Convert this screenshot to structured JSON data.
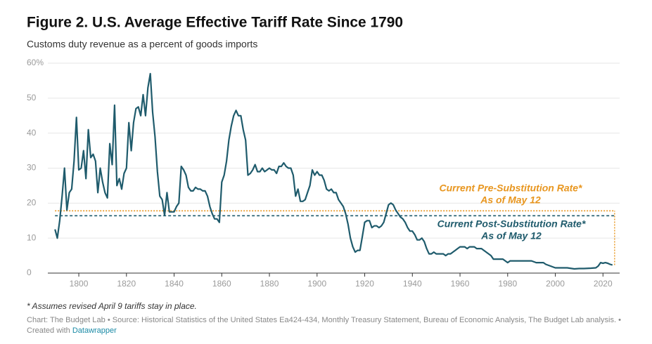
{
  "chart_data": {
    "type": "line",
    "title": "Figure 2. U.S. Average Effective Tariff Rate Since 1790",
    "subtitle": "Customs duty revenue as a percent of goods imports",
    "note": "* Assumes revised April 9 tariffs stay in place.",
    "source": "Chart: The Budget Lab • Source: Historical Statistics of the United States Ea424-434, Monthly Treasury Statement, Bureau of Economic Analysis, The Budget Lab analysis. •",
    "credit": "Created with",
    "credit_link": "Datawrapper",
    "color": "#1f5b6c",
    "x": [
      1790,
      1791,
      1792,
      1793,
      1794,
      1795,
      1796,
      1797,
      1798,
      1799,
      1800,
      1801,
      1802,
      1803,
      1804,
      1805,
      1806,
      1807,
      1808,
      1809,
      1810,
      1811,
      1812,
      1813,
      1814,
      1815,
      1816,
      1817,
      1818,
      1819,
      1820,
      1821,
      1822,
      1823,
      1824,
      1825,
      1826,
      1827,
      1828,
      1829,
      1830,
      1831,
      1832,
      1833,
      1834,
      1835,
      1836,
      1837,
      1838,
      1839,
      1840,
      1841,
      1842,
      1843,
      1844,
      1845,
      1846,
      1847,
      1848,
      1849,
      1850,
      1851,
      1852,
      1853,
      1854,
      1855,
      1856,
      1857,
      1858,
      1859,
      1860,
      1861,
      1862,
      1863,
      1864,
      1865,
      1866,
      1867,
      1868,
      1869,
      1870,
      1871,
      1872,
      1873,
      1874,
      1875,
      1876,
      1877,
      1878,
      1879,
      1880,
      1881,
      1882,
      1883,
      1884,
      1885,
      1886,
      1887,
      1888,
      1889,
      1890,
      1891,
      1892,
      1893,
      1894,
      1895,
      1896,
      1897,
      1898,
      1899,
      1900,
      1901,
      1902,
      1903,
      1904,
      1905,
      1906,
      1907,
      1908,
      1909,
      1910,
      1911,
      1912,
      1913,
      1914,
      1915,
      1916,
      1917,
      1918,
      1919,
      1920,
      1921,
      1922,
      1923,
      1924,
      1925,
      1926,
      1927,
      1928,
      1929,
      1930,
      1931,
      1932,
      1933,
      1934,
      1935,
      1936,
      1937,
      1938,
      1939,
      1940,
      1941,
      1942,
      1943,
      1944,
      1945,
      1946,
      1947,
      1948,
      1949,
      1950,
      1951,
      1952,
      1953,
      1954,
      1955,
      1956,
      1957,
      1958,
      1959,
      1960,
      1961,
      1962,
      1963,
      1964,
      1965,
      1966,
      1967,
      1968,
      1969,
      1970,
      1971,
      1972,
      1973,
      1974,
      1975,
      1976,
      1977,
      1978,
      1979,
      1980,
      1981,
      1982,
      1985,
      1988,
      1990,
      1992,
      1995,
      1996,
      1998,
      2000,
      2002,
      2005,
      2008,
      2010,
      2012,
      2015,
      2017,
      2018,
      2019,
      2020,
      2021,
      2022,
      2023,
      2024
    ],
    "values": [
      12.5,
      10,
      15,
      22,
      30,
      18,
      23,
      24,
      32,
      44.5,
      29.5,
      30,
      35,
      27,
      41,
      33,
      34,
      32,
      23,
      30,
      26,
      23,
      21.5,
      37,
      31,
      48,
      25,
      27,
      24,
      28.5,
      30,
      43,
      35,
      43,
      47,
      47.5,
      45,
      51,
      45,
      53,
      57,
      46,
      39,
      29,
      22,
      21,
      16.5,
      23,
      17.5,
      17.5,
      17.5,
      19,
      20,
      30.5,
      29.5,
      28,
      24.5,
      23.5,
      23.5,
      24.5,
      24,
      24,
      23.5,
      23.5,
      22,
      19,
      17,
      15.5,
      15.5,
      14.5,
      26,
      28,
      32,
      38,
      42,
      45,
      46.5,
      45,
      45,
      41,
      38,
      28,
      28.5,
      29.5,
      31,
      29,
      29,
      30,
      29,
      29.5,
      30,
      29.5,
      29.5,
      28.5,
      30.5,
      30.5,
      31.5,
      30.5,
      30,
      30,
      28,
      22,
      24,
      20.5,
      20.5,
      21,
      23,
      25,
      29.5,
      28,
      29,
      28,
      28,
      26.5,
      24,
      23.5,
      24,
      23,
      23,
      21,
      20,
      19,
      17,
      14,
      10,
      7.5,
      6,
      6.5,
      6.5,
      10.5,
      14.5,
      15,
      15,
      13,
      13.5,
      13.5,
      13,
      13.5,
      14.5,
      17,
      19.5,
      20,
      19.5,
      18,
      17,
      16,
      15.5,
      14.5,
      13,
      12,
      12,
      11,
      9.5,
      9.5,
      10,
      9,
      7,
      5.5,
      5.5,
      6,
      5.5,
      5.5,
      5.5,
      5.5,
      5,
      5.5,
      5.5,
      6,
      6.5,
      7,
      7.5,
      7.5,
      7.5,
      7,
      7.5,
      7.5,
      7.5,
      7,
      7,
      7,
      6.5,
      6,
      5.5,
      5,
      4,
      4,
      4,
      4,
      4,
      3.5,
      3,
      3.5,
      3.5,
      3.5,
      3.5,
      3.5,
      3,
      3,
      2.5,
      2,
      1.5,
      1.5,
      1.5,
      1.2,
      1.3,
      1.3,
      1.4,
      1.5,
      2,
      3,
      2.8,
      3,
      2.8,
      2.5,
      2.3
    ],
    "reference_lines": [
      {
        "value": 17.8,
        "color": "#e8961f",
        "label": [
          "Current Pre-Substitution Rate*",
          "As of May 12"
        ]
      },
      {
        "value": 16.4,
        "color": "#1f5b6c",
        "label": [
          "Current Post-Substitution Rate*",
          "As of May 12"
        ]
      }
    ],
    "xlim": [
      1787,
      2027
    ],
    "ylim": [
      0,
      60
    ],
    "xticks": [
      1800,
      1820,
      1840,
      1860,
      1880,
      1900,
      1920,
      1940,
      1960,
      1980,
      2000,
      2020
    ],
    "yticks": [
      0,
      10,
      20,
      30,
      40,
      {
        "value": 60,
        "label": "60%"
      },
      50
    ],
    "grid": true
  }
}
